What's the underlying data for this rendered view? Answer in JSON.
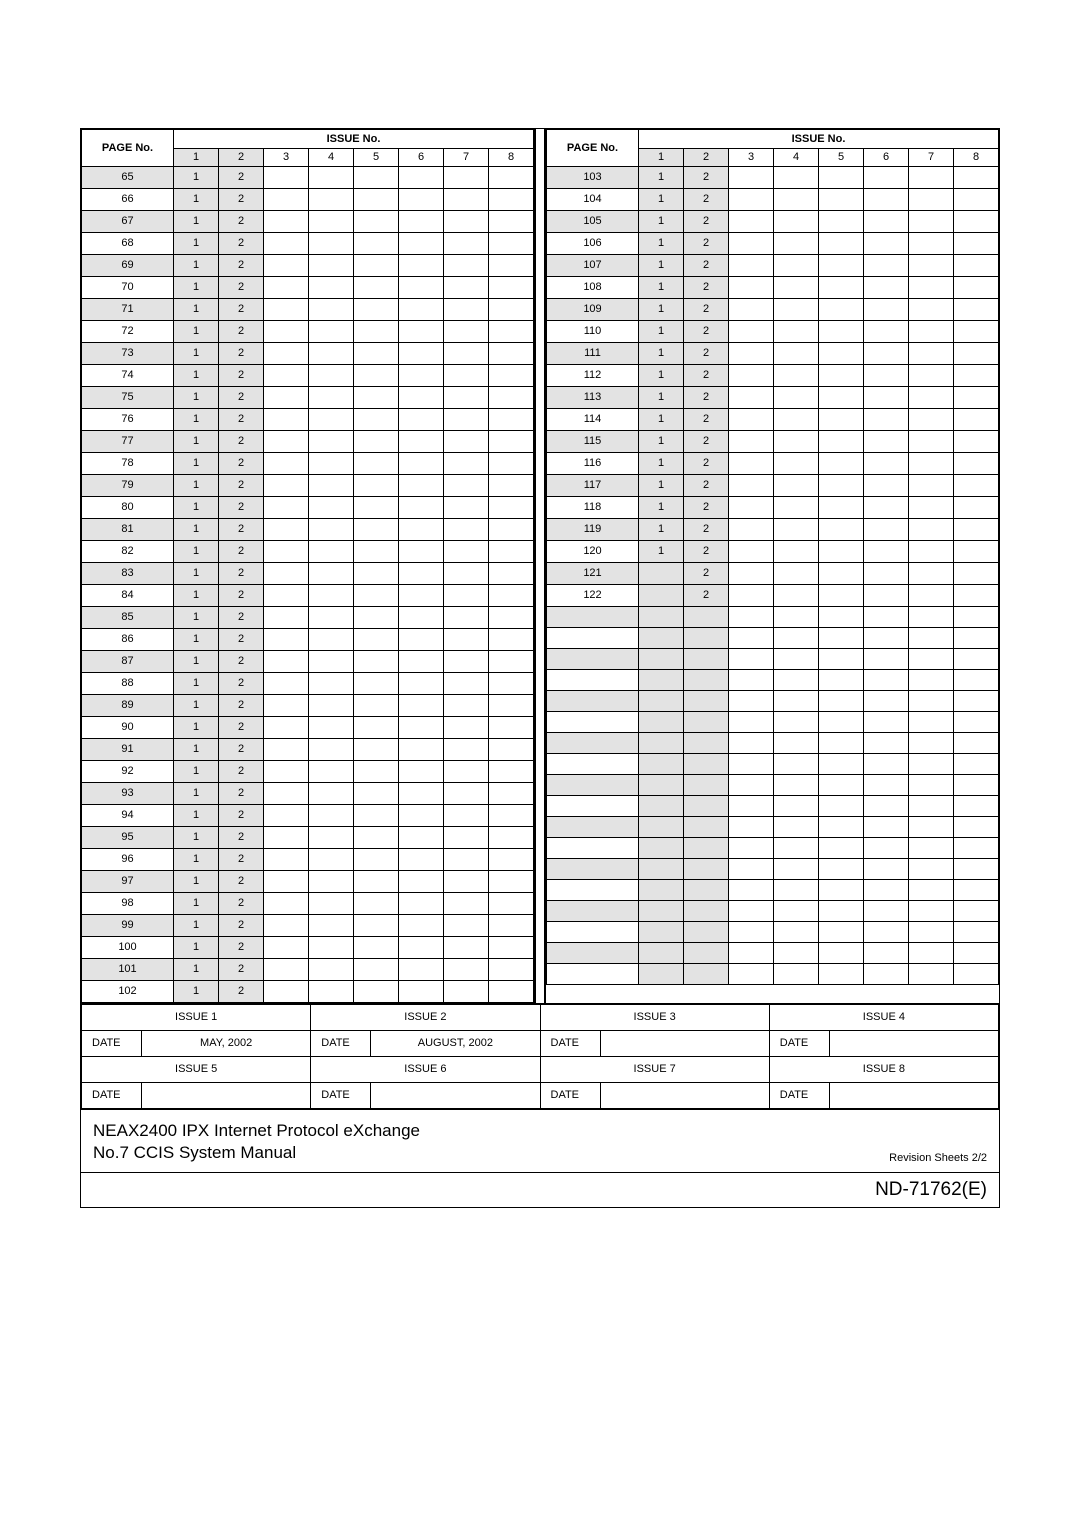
{
  "headers": {
    "page_no": "PAGE No.",
    "issue_no": "ISSUE No.",
    "issue_cols": [
      "1",
      "2",
      "3",
      "4",
      "5",
      "6",
      "7",
      "8"
    ]
  },
  "left_table": {
    "start": 65,
    "end": 102,
    "cells_col1": "1",
    "cells_col2": "2"
  },
  "right_table": {
    "start": 103,
    "end": 122,
    "total_rows": 38,
    "col1_end": 120,
    "cells_col1": "1",
    "cells_col2": "2"
  },
  "issue_labels": {
    "i1": "ISSUE 1",
    "i2": "ISSUE 2",
    "i3": "ISSUE 3",
    "i4": "ISSUE 4",
    "i5": "ISSUE 5",
    "i6": "ISSUE 6",
    "i7": "ISSUE 7",
    "i8": "ISSUE 8",
    "date": "DATE",
    "d1": "MAY, 2002",
    "d2": "AUGUST, 2002",
    "d3": "",
    "d4": "",
    "d5": "",
    "d6": "",
    "d7": "",
    "d8": ""
  },
  "footer": {
    "line1": "NEAX2400 IPX Internet Protocol eXchange",
    "line2": "No.7 CCIS System Manual",
    "sheets": "Revision Sheets 2/2",
    "docnum": "ND-71762(E)"
  },
  "colors": {
    "shade": "#e3e3e3",
    "border": "#000000",
    "bg": "#ffffff"
  }
}
